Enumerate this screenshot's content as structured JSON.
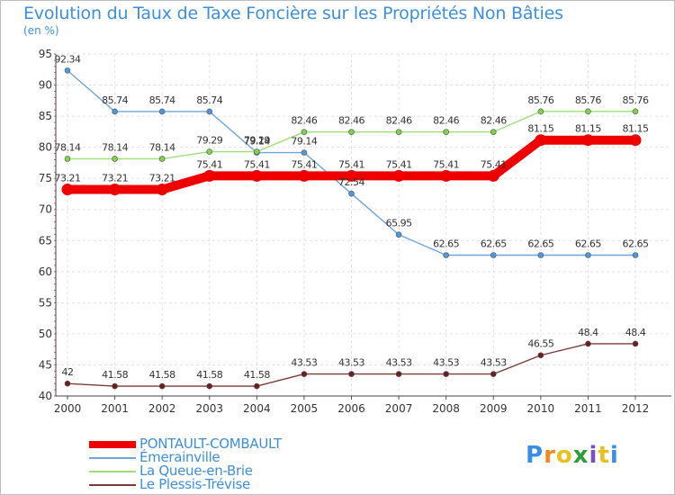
{
  "chart_title": "Evolution du Taux de Taxe Foncière sur les Propriétés Non Bâties",
  "unit_label": "(en %)",
  "brand": {
    "letters": [
      "P",
      "r",
      "o",
      "x",
      "i",
      "t",
      "i"
    ],
    "letter_colors": [
      "#3a8ee6",
      "#f08a1c",
      "#e8c020",
      "#2e9e3a",
      "#7a4fc0",
      "#e8c020",
      "#3a8ee6"
    ]
  },
  "chart_data": {
    "type": "line",
    "x": [
      "2000",
      "2001",
      "2002",
      "2003",
      "2004",
      "2005",
      "2006",
      "2007",
      "2008",
      "2009",
      "2010",
      "2011",
      "2012"
    ],
    "ylim": [
      40,
      95
    ],
    "yticks": [
      40,
      45,
      50,
      55,
      60,
      65,
      70,
      75,
      80,
      85,
      90,
      95
    ],
    "grid": true,
    "legend_position": "bottom-left",
    "series": [
      {
        "name": "PONTAULT-COMBAULT",
        "values": [
          73.21,
          73.21,
          73.21,
          75.41,
          75.41,
          75.41,
          75.41,
          75.41,
          75.41,
          75.41,
          81.15,
          81.15,
          81.15
        ],
        "labels": [
          "73.21",
          "73.21",
          "73.21",
          "75.41",
          "75.41",
          "75.41",
          "75.41",
          "75.41",
          "75.41",
          "75.41",
          "81.15",
          "81.15",
          "81.15"
        ],
        "color": "#ee0000",
        "marker_color": "#ee0000"
      },
      {
        "name": "Émerainville",
        "values": [
          92.34,
          85.74,
          85.74,
          85.74,
          79.14,
          79.14,
          72.54,
          65.95,
          62.65,
          62.65,
          62.65,
          62.65,
          62.65
        ],
        "labels": [
          "92.34",
          "85.74",
          "85.74",
          "85.74",
          "79.14",
          "79.14",
          "72.54",
          "65.95",
          "62.65",
          "62.65",
          "62.65",
          "62.65",
          "62.65"
        ],
        "color": "#6fa6d9",
        "marker_color": "#4f97dc"
      },
      {
        "name": "La Queue-en-Brie",
        "values": [
          78.14,
          78.14,
          78.14,
          79.29,
          79.29,
          82.46,
          82.46,
          82.46,
          82.46,
          82.46,
          85.76,
          85.76,
          85.76
        ],
        "labels": [
          "78.14",
          "78.14",
          "78.14",
          "79.29",
          "79.29",
          "82.46",
          "82.46",
          "82.46",
          "82.46",
          "82.46",
          "85.76",
          "85.76",
          "85.76"
        ],
        "color": "#9ee077",
        "marker_color": "#7fd24a"
      },
      {
        "name": "Le Plessis-Trévise",
        "values": [
          42,
          41.58,
          41.58,
          41.58,
          41.58,
          43.53,
          43.53,
          43.53,
          43.53,
          43.53,
          46.55,
          48.4,
          48.4
        ],
        "labels": [
          "42",
          "41.58",
          "41.58",
          "41.58",
          "41.58",
          "43.53",
          "43.53",
          "43.53",
          "43.53",
          "43.53",
          "46.55",
          "48.4",
          "48.4"
        ],
        "color": "#7a3b3b",
        "marker_color": "#6b1f1f"
      }
    ]
  }
}
